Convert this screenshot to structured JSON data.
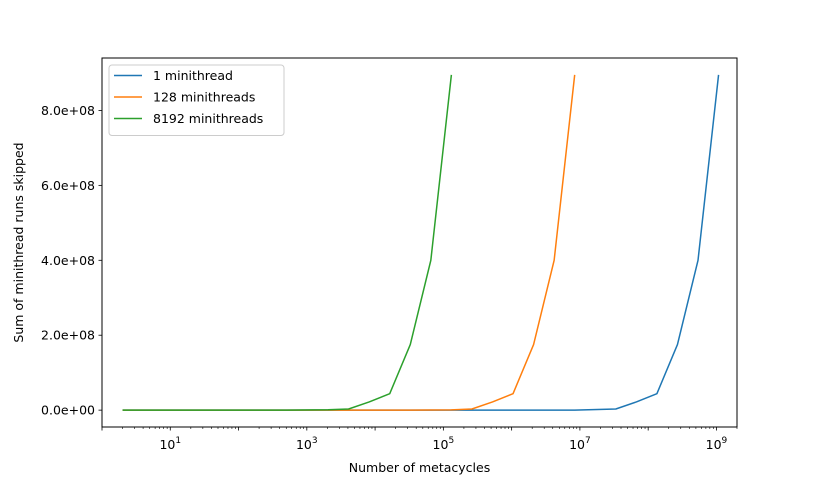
{
  "chart_data": {
    "type": "line",
    "title": "",
    "xlabel": "Number of metacycles",
    "ylabel": "Sum of minithread runs skipped",
    "xscale": "log",
    "xlim": [
      1,
      2000000000
    ],
    "ylim": [
      -45000000,
      940000000
    ],
    "grid": false,
    "legend_position": "top-left",
    "x_ticks": [
      {
        "value": 10,
        "base": "10",
        "exp": "1"
      },
      {
        "value": 1000,
        "base": "10",
        "exp": "3"
      },
      {
        "value": 100000,
        "base": "10",
        "exp": "5"
      },
      {
        "value": 10000000,
        "base": "10",
        "exp": "7"
      },
      {
        "value": 1000000000,
        "base": "10",
        "exp": "9"
      }
    ],
    "y_ticks": [
      {
        "value": 0,
        "label": "0.0e+00"
      },
      {
        "value": 200000000,
        "label": "2.0e+08"
      },
      {
        "value": 400000000,
        "label": "4.0e+08"
      },
      {
        "value": 600000000,
        "label": "6.0e+08"
      },
      {
        "value": 800000000,
        "label": "8.0e+08"
      }
    ],
    "series": [
      {
        "name": "1 minithread",
        "color": "#1f77b4",
        "x": [
          2,
          8,
          32,
          128,
          512,
          2048,
          8192,
          32768,
          131072,
          524288,
          2097152,
          8388608,
          33554432,
          67108864,
          134217728,
          268435456,
          536870912,
          1073741824
        ],
        "y": [
          0,
          0,
          0,
          0,
          0,
          0,
          0,
          0,
          0,
          0,
          0,
          200000,
          3000000,
          22000000,
          44000000,
          175000000,
          400000000,
          895000000
        ]
      },
      {
        "name": "128 minithreads",
        "color": "#ff7f0e",
        "x": [
          2,
          8,
          32,
          128,
          512,
          2048,
          8192,
          32768,
          131072,
          262144,
          524288,
          1048576,
          2097152,
          4194304,
          8388608
        ],
        "y": [
          0,
          0,
          0,
          0,
          0,
          0,
          0,
          0,
          800000,
          3000000,
          22000000,
          44000000,
          175000000,
          400000000,
          895000000
        ]
      },
      {
        "name": "8192 minithreads",
        "color": "#2ca02c",
        "x": [
          2,
          8,
          32,
          128,
          512,
          2048,
          4096,
          8192,
          16384,
          32768,
          65536,
          131072
        ],
        "y": [
          0,
          0,
          0,
          0,
          0,
          1000000,
          3000000,
          22000000,
          44000000,
          175000000,
          400000000,
          895000000
        ]
      }
    ]
  }
}
